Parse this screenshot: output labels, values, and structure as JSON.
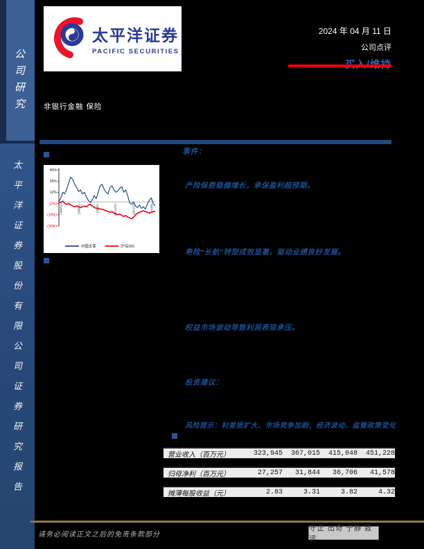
{
  "sidebar": {
    "top_label": "公司研究",
    "bottom_label": "太平洋证券股份有限公司证券研究报告"
  },
  "header": {
    "logo_cn": "太平洋证券",
    "logo_en": "PACIFIC SECURITIES",
    "date": "2024 年 04 月 11 日",
    "report_type": "公司点评",
    "rating": "买入/维持",
    "sector": "非银行金融  保险",
    "accent_red": "#e60012",
    "rating_blue": "#2f64b1"
  },
  "sections": {
    "event_label": "事件：",
    "points": [
      "产险保费稳健增长，承保盈利超预期。",
      "寿险“长航”转型成效显著，驱动业绩良好发展。",
      "权益市场波动导致利润表现承压。"
    ],
    "advice_label": "投资建议：",
    "risk_line": "风险提示：利差损扩大、市场竞争加剧、经济波动、监管政策变化"
  },
  "chart_data": {
    "type": "line",
    "title": "",
    "xlabel": "",
    "ylabel": "",
    "ylim": [
      -30,
      40
    ],
    "grid": false,
    "legend_position": "bottom",
    "y_tick_labels": [
      "40%",
      "26%",
      "12%",
      "(2%)",
      "(16%)",
      "(30%)"
    ],
    "y_tick_values": [
      40,
      26,
      12,
      -2,
      -16,
      -30
    ],
    "x_tick_labels": [
      "23/4/10",
      "23/6/21",
      "23/9/1",
      "23/11/12",
      "24/1/23",
      "24/4/4"
    ],
    "series": [
      {
        "name": "中国太保",
        "color": "#1f4e8f",
        "values": [
          0,
          5,
          12,
          10,
          16,
          24,
          31,
          28,
          22,
          18,
          13,
          15,
          10,
          12,
          6,
          2,
          -1,
          3,
          8,
          4,
          12,
          20,
          22,
          16,
          12,
          10,
          18,
          20,
          15,
          12,
          14,
          17,
          19,
          12,
          15,
          8,
          -1,
          -3,
          0,
          -5,
          -7,
          -4,
          -8,
          -6,
          -9,
          -3,
          2,
          5,
          -2,
          -5
        ]
      },
      {
        "name": "沪深300",
        "color": "#e60012",
        "values": [
          0,
          -1,
          1,
          -2,
          -3,
          -2,
          -4,
          -5,
          -6,
          -5,
          -6,
          -7,
          -6,
          -5,
          -6,
          -4,
          -3,
          -5,
          -7,
          -8,
          -8,
          -9,
          -9,
          -10,
          -11,
          -12,
          -13,
          -12,
          -14,
          -15,
          -16,
          -15,
          -17,
          -18,
          -17,
          -19,
          -20,
          -21,
          -19,
          -16,
          -14,
          -13,
          -12,
          -11,
          -12,
          -13,
          -14,
          -13,
          -12,
          -12
        ]
      }
    ]
  },
  "table": {
    "rows": [
      {
        "label": "营业收入（百万元）",
        "values": [
          "323,945",
          "367,015",
          "415,048",
          "451,228"
        ]
      },
      {
        "label": "归母净利（百万元）",
        "values": [
          "27,257",
          "31,844",
          "36,706",
          "41,578"
        ]
      },
      {
        "label": "摊薄每股收益（元）",
        "values": [
          "2.83",
          "3.31",
          "3.82",
          "4.32"
        ]
      }
    ]
  },
  "footer": {
    "disclaimer": "请务必阅读正文之后的免责条款部分",
    "motto": "守正 出奇 宁静 致远"
  }
}
